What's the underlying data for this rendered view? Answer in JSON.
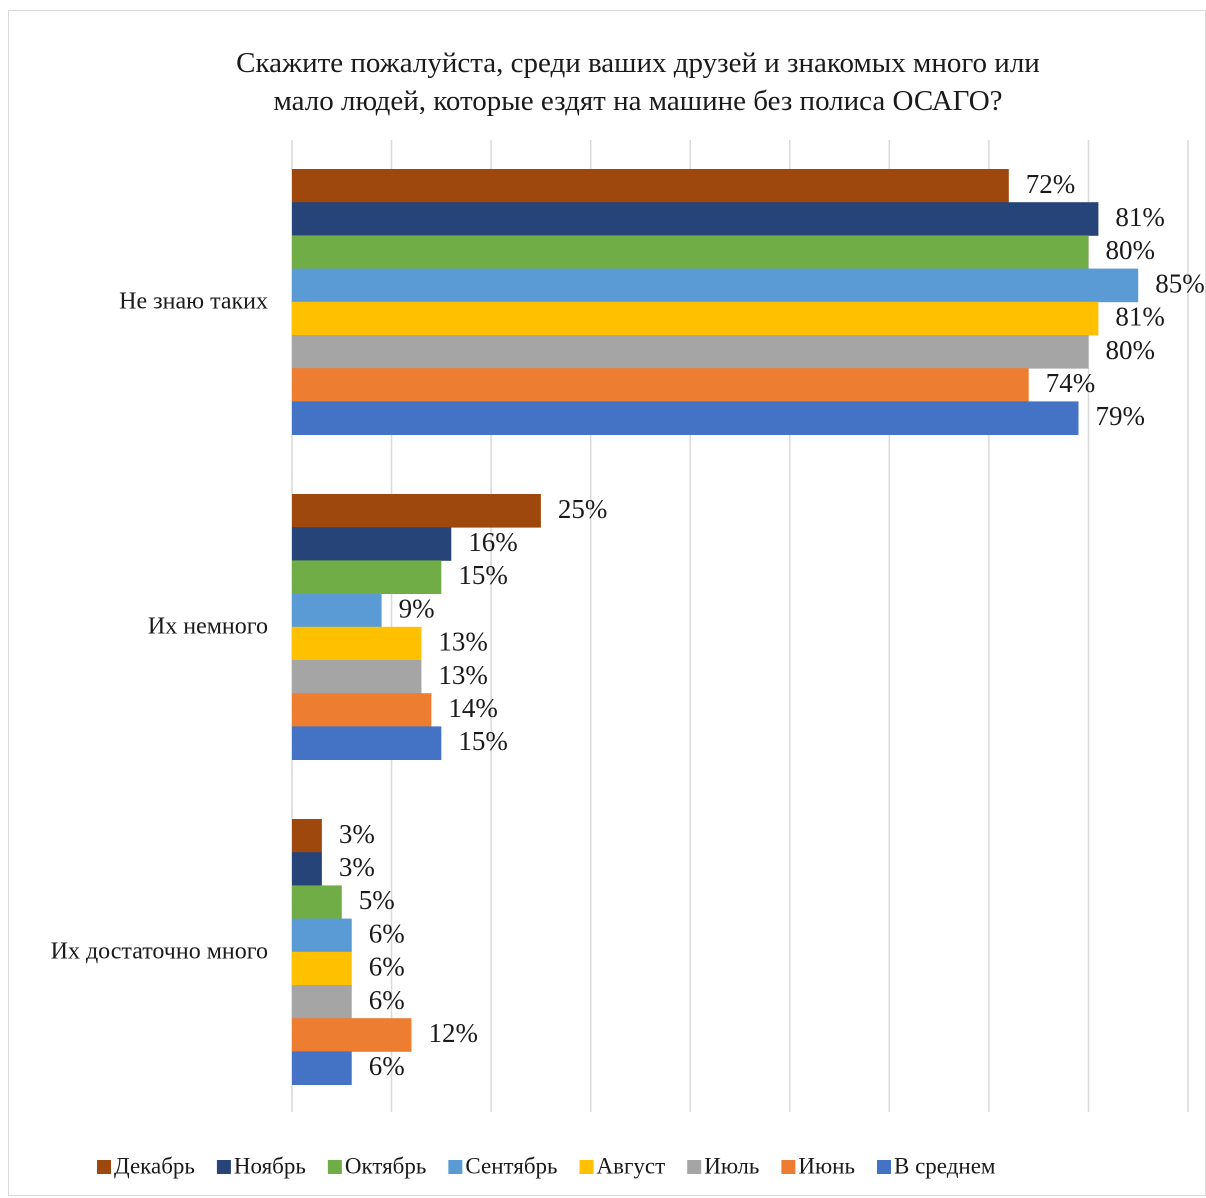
{
  "chart_data": {
    "type": "bar",
    "orientation": "horizontal",
    "title_lines": [
      "Скажите пожалуйста, среди ваших друзей и знакомых много или",
      "мало людей, которые ездят на машине без полиса ОСАГО?"
    ],
    "categories": [
      "Не знаю таких",
      "Их немного",
      "Их достаточно много"
    ],
    "series": [
      {
        "name": "Декабрь",
        "color": "#9E480E",
        "values": [
          72,
          25,
          3
        ],
        "labels": [
          "72%",
          "25%",
          "3%"
        ]
      },
      {
        "name": "Ноябрь",
        "color": "#264478",
        "values": [
          81,
          16,
          3
        ],
        "labels": [
          "81%",
          "16%",
          "3%"
        ]
      },
      {
        "name": "Октябрь",
        "color": "#70AD47",
        "values": [
          80,
          15,
          5
        ],
        "labels": [
          "80%",
          "15%",
          "5%"
        ]
      },
      {
        "name": "Сентябрь",
        "color": "#5B9BD5",
        "values": [
          85,
          9,
          6
        ],
        "labels": [
          "85%",
          "9%",
          "6%"
        ]
      },
      {
        "name": "Август",
        "color": "#FFC000",
        "values": [
          81,
          13,
          6
        ],
        "labels": [
          "81%",
          "13%",
          "6%"
        ]
      },
      {
        "name": "Июль",
        "color": "#A5A5A5",
        "values": [
          80,
          13,
          6
        ],
        "labels": [
          "80%",
          "13%",
          "6%"
        ]
      },
      {
        "name": "Июнь",
        "color": "#ED7D31",
        "values": [
          74,
          14,
          12
        ],
        "labels": [
          "74%",
          "14%",
          "12%"
        ]
      },
      {
        "name": "В среднем",
        "color": "#4472C4",
        "values": [
          79,
          15,
          6
        ],
        "labels": [
          "79%",
          "15%",
          "6%"
        ]
      }
    ],
    "xlim": [
      0,
      90
    ],
    "grid": true,
    "gridline_color": "#d9d9d9",
    "legend_position": "bottom",
    "xlabel": "",
    "ylabel": ""
  }
}
